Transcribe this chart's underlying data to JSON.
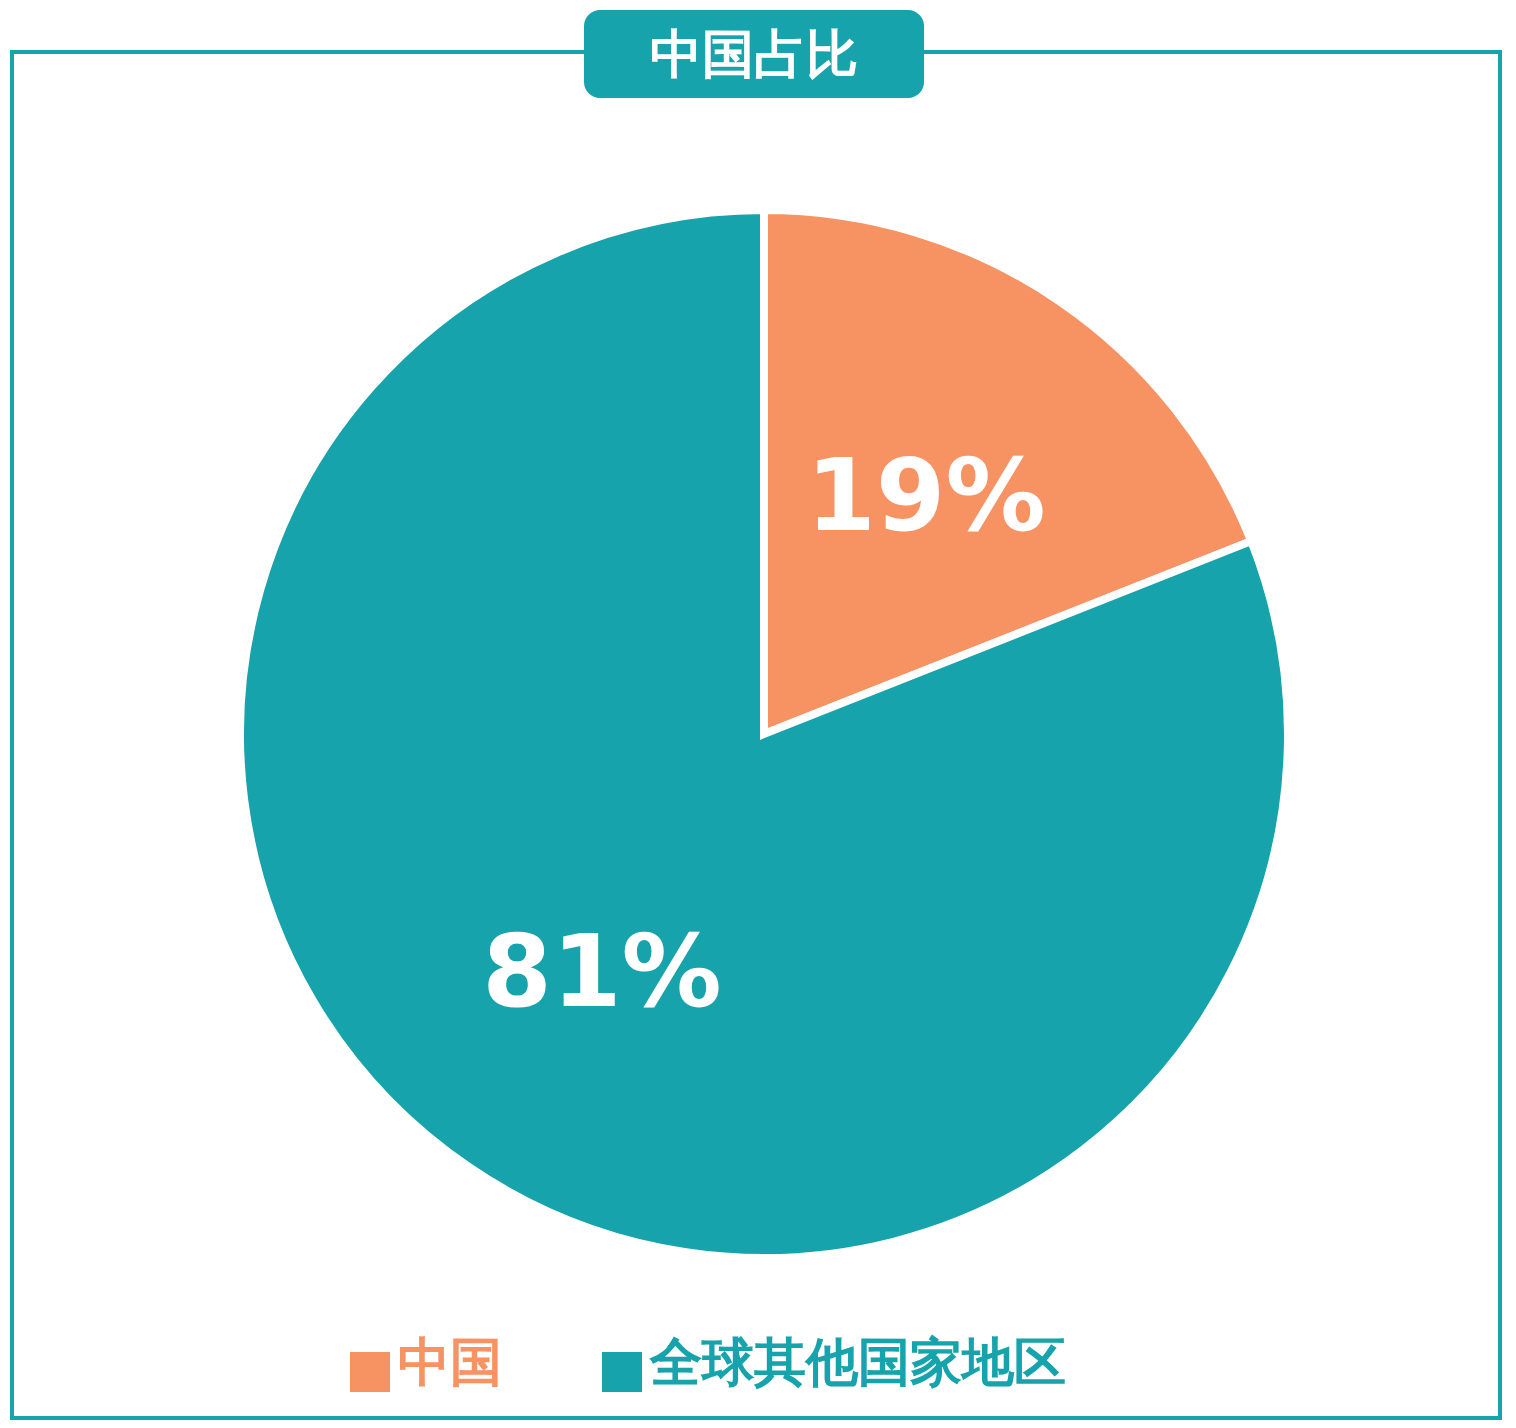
{
  "chart_data": {
    "type": "pie",
    "title": "中国占比",
    "categories": [
      "中国",
      "全球其他国家地区"
    ],
    "values": [
      19,
      81
    ],
    "colors": [
      "#f79262",
      "#16a3ab"
    ],
    "value_labels": [
      "19%",
      "81%"
    ],
    "legend": "bottom"
  }
}
